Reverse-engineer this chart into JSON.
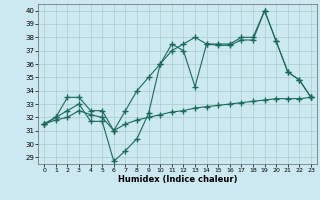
{
  "xlabel": "Humidex (Indice chaleur)",
  "background_color": "#cce8f0",
  "grid_color": "#aacccc",
  "line_color": "#1a6b5a",
  "xlim": [
    -0.5,
    23.5
  ],
  "ylim": [
    28.5,
    40.5
  ],
  "yticks": [
    29,
    30,
    31,
    32,
    33,
    34,
    35,
    36,
    37,
    38,
    39,
    40
  ],
  "xticks": [
    0,
    1,
    2,
    3,
    4,
    5,
    6,
    7,
    8,
    9,
    10,
    11,
    12,
    13,
    14,
    15,
    16,
    17,
    18,
    19,
    20,
    21,
    22,
    23
  ],
  "line1": [
    31.5,
    32.0,
    32.5,
    33.0,
    31.7,
    31.7,
    28.7,
    29.5,
    30.4,
    32.3,
    36.0,
    37.5,
    37.0,
    34.3,
    37.5,
    37.4,
    37.4,
    37.8,
    37.8,
    40.0,
    37.7,
    35.4,
    34.8,
    33.5
  ],
  "line2": [
    31.5,
    32.0,
    33.5,
    33.5,
    32.5,
    32.5,
    31.0,
    32.5,
    34.0,
    35.0,
    36.0,
    37.0,
    37.5,
    38.0,
    37.5,
    37.5,
    37.5,
    38.0,
    38.0,
    40.0,
    37.7,
    35.4,
    34.8,
    33.5
  ],
  "line3": [
    31.5,
    31.8,
    32.0,
    32.5,
    32.2,
    32.0,
    31.0,
    31.5,
    31.8,
    32.0,
    32.2,
    32.4,
    32.5,
    32.7,
    32.8,
    32.9,
    33.0,
    33.1,
    33.2,
    33.3,
    33.4,
    33.4,
    33.4,
    33.5
  ]
}
